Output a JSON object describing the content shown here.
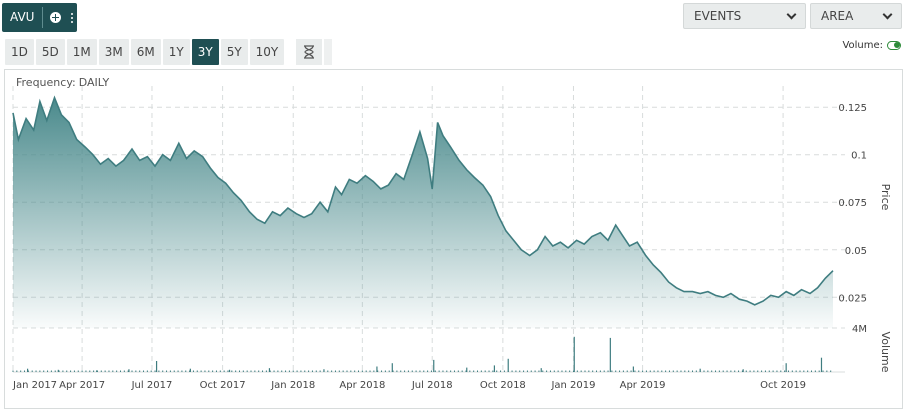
{
  "ticker": {
    "symbol": "AVU"
  },
  "dropdowns": {
    "events_label": "EVENTS",
    "chart_type_label": "AREA"
  },
  "range_buttons": [
    "1D",
    "5D",
    "1M",
    "3M",
    "6M",
    "1Y",
    "3Y",
    "5Y",
    "10Y"
  ],
  "active_range": "3Y",
  "volume_toggle": {
    "label": "Volume:",
    "on": true
  },
  "frequency": {
    "label": "Frequency:",
    "value": "DAILY"
  },
  "colors": {
    "accent": "#1f4f53",
    "line": "#3f7d80",
    "area_top": "#4a8a8c",
    "volume": "#3f7d80",
    "toggle_on": "#2e8b3a"
  },
  "chart_data": {
    "type": "area",
    "x_ticks": [
      "Jan 2017",
      "Apr 2017",
      "Jul 2017",
      "Oct 2017",
      "Jan 2018",
      "Apr 2018",
      "Jul 2018",
      "Oct 2018",
      "Jan 2019",
      "Apr 2019",
      "Oct 2019"
    ],
    "price_axis": {
      "label": "Price",
      "ticks": [
        "0.125",
        "0.1",
        "0.075",
        "0.05",
        "0.025"
      ],
      "range": [
        0.012,
        0.133
      ]
    },
    "volume_axis": {
      "label": "Volume",
      "ticks": [
        "4M"
      ],
      "range": [
        0,
        4000000
      ]
    },
    "x_range": [
      "2017-01-01",
      "2019-12-05"
    ],
    "price_series": [
      [
        "2017-01-01",
        0.122
      ],
      [
        "2017-01-08",
        0.108
      ],
      [
        "2017-01-18",
        0.119
      ],
      [
        "2017-01-28",
        0.113
      ],
      [
        "2017-02-05",
        0.128
      ],
      [
        "2017-02-14",
        0.118
      ],
      [
        "2017-02-24",
        0.13
      ],
      [
        "2017-03-05",
        0.121
      ],
      [
        "2017-03-15",
        0.117
      ],
      [
        "2017-03-25",
        0.108
      ],
      [
        "2017-04-05",
        0.104
      ],
      [
        "2017-04-15",
        0.1
      ],
      [
        "2017-04-25",
        0.095
      ],
      [
        "2017-05-05",
        0.098
      ],
      [
        "2017-05-15",
        0.094
      ],
      [
        "2017-05-25",
        0.097
      ],
      [
        "2017-06-05",
        0.103
      ],
      [
        "2017-06-15",
        0.097
      ],
      [
        "2017-06-25",
        0.099
      ],
      [
        "2017-07-05",
        0.094
      ],
      [
        "2017-07-15",
        0.1
      ],
      [
        "2017-07-25",
        0.097
      ],
      [
        "2017-08-05",
        0.106
      ],
      [
        "2017-08-15",
        0.098
      ],
      [
        "2017-08-25",
        0.102
      ],
      [
        "2017-09-05",
        0.099
      ],
      [
        "2017-09-15",
        0.093
      ],
      [
        "2017-09-25",
        0.088
      ],
      [
        "2017-10-05",
        0.085
      ],
      [
        "2017-10-15",
        0.08
      ],
      [
        "2017-10-25",
        0.076
      ],
      [
        "2017-11-05",
        0.07
      ],
      [
        "2017-11-15",
        0.066
      ],
      [
        "2017-11-25",
        0.064
      ],
      [
        "2017-12-05",
        0.07
      ],
      [
        "2017-12-15",
        0.068
      ],
      [
        "2017-12-25",
        0.072
      ],
      [
        "2018-01-05",
        0.069
      ],
      [
        "2018-01-15",
        0.067
      ],
      [
        "2018-01-25",
        0.069
      ],
      [
        "2018-02-05",
        0.075
      ],
      [
        "2018-02-15",
        0.07
      ],
      [
        "2018-02-25",
        0.083
      ],
      [
        "2018-03-05",
        0.079
      ],
      [
        "2018-03-15",
        0.087
      ],
      [
        "2018-03-25",
        0.085
      ],
      [
        "2018-04-05",
        0.089
      ],
      [
        "2018-04-15",
        0.086
      ],
      [
        "2018-04-25",
        0.082
      ],
      [
        "2018-05-05",
        0.084
      ],
      [
        "2018-05-15",
        0.09
      ],
      [
        "2018-05-25",
        0.087
      ],
      [
        "2018-06-05",
        0.1
      ],
      [
        "2018-06-15",
        0.112
      ],
      [
        "2018-06-25",
        0.098
      ],
      [
        "2018-07-01",
        0.082
      ],
      [
        "2018-07-08",
        0.117
      ],
      [
        "2018-07-15",
        0.11
      ],
      [
        "2018-07-25",
        0.104
      ],
      [
        "2018-08-05",
        0.097
      ],
      [
        "2018-08-15",
        0.092
      ],
      [
        "2018-08-25",
        0.088
      ],
      [
        "2018-09-05",
        0.084
      ],
      [
        "2018-09-15",
        0.078
      ],
      [
        "2018-09-25",
        0.068
      ],
      [
        "2018-10-05",
        0.06
      ],
      [
        "2018-10-15",
        0.055
      ],
      [
        "2018-10-25",
        0.05
      ],
      [
        "2018-11-05",
        0.047
      ],
      [
        "2018-11-15",
        0.05
      ],
      [
        "2018-11-25",
        0.057
      ],
      [
        "2018-12-05",
        0.052
      ],
      [
        "2018-12-15",
        0.054
      ],
      [
        "2018-12-25",
        0.051
      ],
      [
        "2019-01-05",
        0.055
      ],
      [
        "2019-01-15",
        0.053
      ],
      [
        "2019-01-25",
        0.057
      ],
      [
        "2019-02-05",
        0.059
      ],
      [
        "2019-02-15",
        0.055
      ],
      [
        "2019-02-25",
        0.063
      ],
      [
        "2019-03-05",
        0.058
      ],
      [
        "2019-03-15",
        0.052
      ],
      [
        "2019-03-25",
        0.054
      ],
      [
        "2019-04-05",
        0.047
      ],
      [
        "2019-04-15",
        0.042
      ],
      [
        "2019-04-25",
        0.038
      ],
      [
        "2019-05-05",
        0.033
      ],
      [
        "2019-05-15",
        0.03
      ],
      [
        "2019-05-25",
        0.028
      ],
      [
        "2019-06-05",
        0.028
      ],
      [
        "2019-06-15",
        0.027
      ],
      [
        "2019-06-25",
        0.028
      ],
      [
        "2019-07-05",
        0.026
      ],
      [
        "2019-07-15",
        0.025
      ],
      [
        "2019-07-25",
        0.027
      ],
      [
        "2019-08-05",
        0.024
      ],
      [
        "2019-08-15",
        0.023
      ],
      [
        "2019-08-25",
        0.021
      ],
      [
        "2019-09-05",
        0.023
      ],
      [
        "2019-09-15",
        0.026
      ],
      [
        "2019-09-25",
        0.025
      ],
      [
        "2019-10-05",
        0.028
      ],
      [
        "2019-10-15",
        0.026
      ],
      [
        "2019-10-25",
        0.029
      ],
      [
        "2019-11-05",
        0.027
      ],
      [
        "2019-11-15",
        0.03
      ],
      [
        "2019-11-25",
        0.035
      ],
      [
        "2019-12-05",
        0.039
      ]
    ],
    "volume_spikes": [
      [
        "2017-01-20",
        300000
      ],
      [
        "2017-03-01",
        200000
      ],
      [
        "2017-04-20",
        150000
      ],
      [
        "2017-06-01",
        250000
      ],
      [
        "2017-07-07",
        1000000
      ],
      [
        "2017-08-20",
        300000
      ],
      [
        "2017-10-10",
        200000
      ],
      [
        "2017-12-01",
        350000
      ],
      [
        "2018-02-10",
        250000
      ],
      [
        "2018-04-20",
        500000
      ],
      [
        "2018-05-10",
        800000
      ],
      [
        "2018-07-03",
        1100000
      ],
      [
        "2018-08-15",
        400000
      ],
      [
        "2018-09-20",
        600000
      ],
      [
        "2018-10-08",
        1200000
      ],
      [
        "2018-11-20",
        350000
      ],
      [
        "2019-01-02",
        3200000
      ],
      [
        "2019-02-18",
        3100000
      ],
      [
        "2019-03-20",
        500000
      ],
      [
        "2019-06-15",
        300000
      ],
      [
        "2019-08-10",
        250000
      ],
      [
        "2019-10-05",
        800000
      ],
      [
        "2019-11-20",
        1300000
      ]
    ]
  }
}
